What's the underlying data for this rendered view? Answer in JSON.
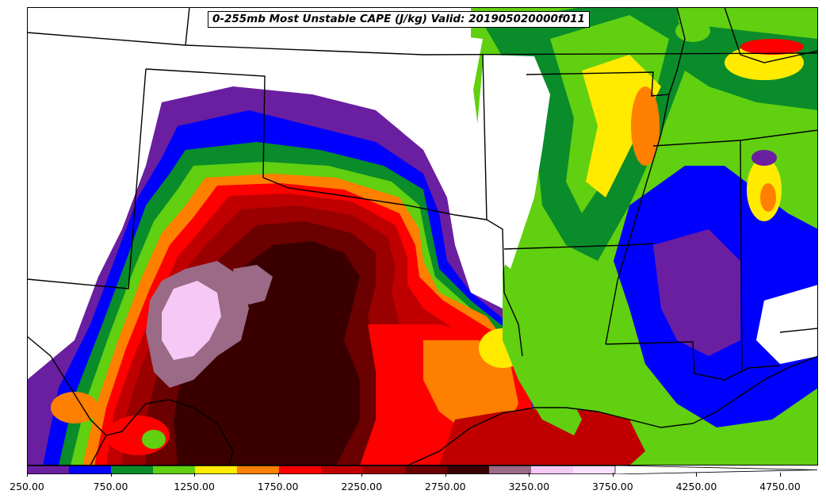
{
  "title": "0-255mb Most Unstable CAPE (J/kg) Valid: 201905020000f011",
  "colorbar": {
    "colors": [
      "#6a1fa0",
      "#0000ff",
      "#0a8c2a",
      "#60d010",
      "#ffea00",
      "#ff7f00",
      "#ff0000",
      "#c00000",
      "#9a0000",
      "#6a0000",
      "#3a0000",
      "#9a6a86",
      "#f5c8f5",
      "#ffe0ff",
      "#ffffff"
    ],
    "tick_labels": [
      "250.00",
      "750.00",
      "1250.00",
      "1750.00",
      "2250.00",
      "2750.00",
      "3250.00",
      "3750.00",
      "4250.00",
      "4750.00"
    ],
    "units": "J/kg",
    "range": [
      250,
      4750
    ],
    "extend": "max"
  },
  "map": {
    "field": "0-255mb Most Unstable CAPE",
    "valid": "201905020000",
    "forecast_hour": "f011"
  }
}
